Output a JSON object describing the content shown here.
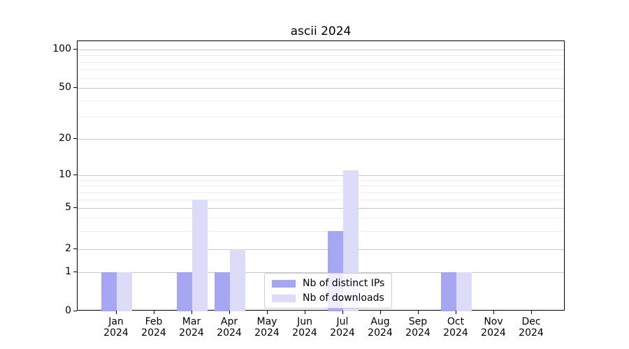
{
  "title": "ascii 2024",
  "colors": {
    "ips_bar": "#a6a6f2",
    "downloads_bar": "#dcdcf8",
    "grid_major": "#c9c9c9",
    "grid_minor": "#ededed",
    "axis": "#000000",
    "legend_border": "#cccccc"
  },
  "legend": {
    "items": [
      {
        "label": "Nb of distinct IPs",
        "color_key": "ips_bar"
      },
      {
        "label": "Nb of downloads",
        "color_key": "downloads_bar"
      }
    ]
  },
  "chart_data": {
    "type": "bar",
    "title": "ascii 2024",
    "xlabel": "",
    "ylabel": "",
    "x_labels": [
      {
        "month": "Jan",
        "year": "2024"
      },
      {
        "month": "Feb",
        "year": "2024"
      },
      {
        "month": "Mar",
        "year": "2024"
      },
      {
        "month": "Apr",
        "year": "2024"
      },
      {
        "month": "May",
        "year": "2024"
      },
      {
        "month": "Jun",
        "year": "2024"
      },
      {
        "month": "Jul",
        "year": "2024"
      },
      {
        "month": "Aug",
        "year": "2024"
      },
      {
        "month": "Sep",
        "year": "2024"
      },
      {
        "month": "Oct",
        "year": "2024"
      },
      {
        "month": "Nov",
        "year": "2024"
      },
      {
        "month": "Dec",
        "year": "2024"
      }
    ],
    "series": [
      {
        "name": "Nb of distinct IPs",
        "values": [
          1,
          0,
          1,
          1,
          0,
          0,
          3,
          0,
          0,
          1,
          0,
          0
        ]
      },
      {
        "name": "Nb of downloads",
        "values": [
          1,
          0,
          6,
          2,
          0,
          0,
          11,
          0,
          0,
          1,
          0,
          0
        ]
      }
    ],
    "y_ticks": [
      0,
      1,
      2,
      5,
      10,
      20,
      50,
      100
    ],
    "y_minor_ticks": [
      3,
      4,
      6,
      7,
      8,
      9,
      30,
      40,
      60,
      70,
      80,
      90
    ],
    "yscale": "symlog-like (linear 0-1, logarithmic above 1)",
    "ylim": [
      0,
      118
    ],
    "grid": "on",
    "legend_position": "lower center"
  }
}
